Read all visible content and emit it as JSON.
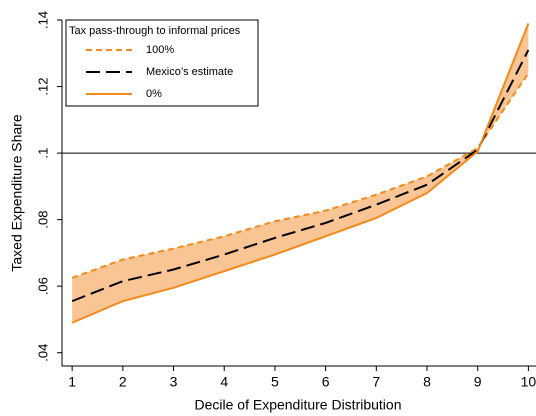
{
  "chart_data": {
    "type": "line",
    "x_label": "Decile of Expenditure Distribution",
    "y_label": "Taxed Expenditure Share",
    "legend_title": "Tax pass-through to informal prices",
    "legend_position": "top-left",
    "x": [
      1,
      2,
      3,
      4,
      5,
      6,
      7,
      8,
      9,
      10
    ],
    "series": [
      {
        "name": "100%",
        "color": "#f28a1d",
        "dash": "6,4",
        "values": [
          0.0625,
          0.068,
          0.0713,
          0.075,
          0.0795,
          0.0827,
          0.0875,
          0.093,
          0.1015,
          0.124
        ]
      },
      {
        "name": "Mexico’s estimate",
        "color": "#000000",
        "dash": "14,6",
        "values": [
          0.0555,
          0.0615,
          0.065,
          0.0695,
          0.0745,
          0.079,
          0.0845,
          0.0905,
          0.101,
          0.131
        ]
      },
      {
        "name": "0%",
        "color": "#f28a1d",
        "dash": "none",
        "values": [
          0.049,
          0.0555,
          0.0595,
          0.0645,
          0.0695,
          0.075,
          0.0805,
          0.088,
          0.1005,
          0.139
        ]
      }
    ],
    "band_color": "#f9c594",
    "reference_line": 0.1,
    "xlim": [
      0.8,
      10.15
    ],
    "ylim": [
      0.036,
      0.14
    ],
    "xticks": [
      1,
      2,
      3,
      4,
      5,
      6,
      7,
      8,
      9,
      10
    ],
    "yticks": [
      {
        "value": 0.04,
        "label": ".04"
      },
      {
        "value": 0.06,
        "label": ".06"
      },
      {
        "value": 0.08,
        "label": ".08"
      },
      {
        "value": 0.1,
        "label": ".1"
      },
      {
        "value": 0.12,
        "label": ".12"
      },
      {
        "value": 0.14,
        "label": ".14"
      }
    ]
  }
}
